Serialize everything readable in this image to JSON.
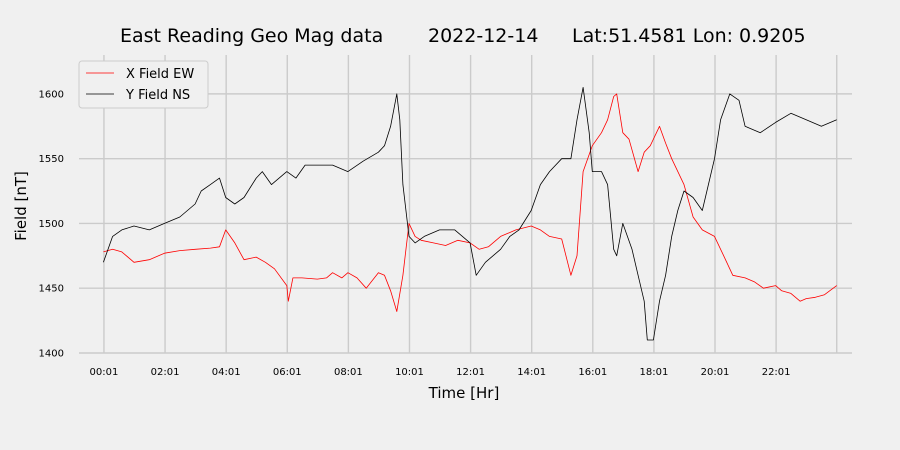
{
  "chart_data": {
    "type": "line",
    "title": {
      "name": "East Reading Geo Mag data",
      "date": "2022-12-14",
      "location": "Lat:51.4581  Lon: 0.9205"
    },
    "xlabel": "Time  [Hr]",
    "ylabel": "Field  [nT]",
    "x_unit": "hours",
    "xlim": [
      -0.8,
      24.5
    ],
    "ylim": [
      1400,
      1630
    ],
    "x_ticks": [
      {
        "x": 0.0167,
        "label": "00:01"
      },
      {
        "x": 2.0167,
        "label": "02:01"
      },
      {
        "x": 4.0167,
        "label": "04:01"
      },
      {
        "x": 6.0167,
        "label": "06:01"
      },
      {
        "x": 8.0167,
        "label": "08:01"
      },
      {
        "x": 10.0167,
        "label": "10:01"
      },
      {
        "x": 12.0167,
        "label": "12:01"
      },
      {
        "x": 14.0167,
        "label": "14:01"
      },
      {
        "x": 16.0167,
        "label": "16:01"
      },
      {
        "x": 18.0167,
        "label": "18:01"
      },
      {
        "x": 20.0167,
        "label": "20:01"
      },
      {
        "x": 22.0167,
        "label": "22:01"
      }
    ],
    "x_grid_extra": [
      24.0
    ],
    "y_ticks": [
      1400,
      1450,
      1500,
      1550,
      1600
    ],
    "grid": true,
    "legend": "top-left",
    "series": [
      {
        "name": "X Field EW",
        "color": "#ff0000",
        "x": [
          0,
          0.3,
          0.6,
          1,
          1.5,
          2,
          2.5,
          3,
          3.5,
          3.8,
          4,
          4.3,
          4.6,
          5,
          5.3,
          5.6,
          6,
          6.05,
          6.2,
          6.5,
          7,
          7.3,
          7.5,
          7.8,
          8,
          8.3,
          8.6,
          9,
          9.2,
          9.4,
          9.6,
          9.8,
          10,
          10.2,
          10.4,
          10.8,
          11.2,
          11.6,
          12,
          12.3,
          12.6,
          13,
          13.5,
          14,
          14.3,
          14.6,
          15,
          15.3,
          15.5,
          15.7,
          16,
          16.3,
          16.5,
          16.7,
          16.8,
          17,
          17.2,
          17.5,
          17.7,
          17.9,
          18.2,
          18.4,
          18.6,
          19,
          19.3,
          19.6,
          20,
          20.3,
          20.6,
          21,
          21.3,
          21.6,
          22,
          22.2,
          22.5,
          22.8,
          23,
          23.3,
          23.6,
          24
        ],
        "y": [
          1478,
          1480,
          1478,
          1470,
          1472,
          1477,
          1479,
          1480,
          1481,
          1482,
          1495,
          1485,
          1472,
          1474,
          1470,
          1465,
          1452,
          1440,
          1458,
          1458,
          1457,
          1458,
          1462,
          1458,
          1462,
          1458,
          1450,
          1462,
          1460,
          1448,
          1432,
          1460,
          1500,
          1490,
          1487,
          1485,
          1483,
          1487,
          1485,
          1480,
          1482,
          1490,
          1495,
          1498,
          1495,
          1490,
          1488,
          1460,
          1475,
          1540,
          1560,
          1570,
          1580,
          1598,
          1600,
          1570,
          1565,
          1540,
          1555,
          1560,
          1575,
          1562,
          1550,
          1530,
          1505,
          1495,
          1490,
          1475,
          1460,
          1458,
          1455,
          1450,
          1452,
          1448,
          1446,
          1440,
          1442,
          1443,
          1445,
          1452
        ]
      },
      {
        "name": "Y Field NS",
        "color": "#000000",
        "x": [
          0,
          0.3,
          0.6,
          1,
          1.5,
          2,
          2.5,
          3,
          3.2,
          3.5,
          3.8,
          4,
          4.3,
          4.6,
          5,
          5.2,
          5.5,
          6,
          6.3,
          6.6,
          7,
          7.5,
          8,
          8.5,
          9,
          9.2,
          9.4,
          9.6,
          9.7,
          9.8,
          10,
          10.2,
          10.5,
          11,
          11.5,
          12,
          12.2,
          12.5,
          13,
          13.3,
          13.6,
          14,
          14.3,
          14.6,
          15,
          15.3,
          15.5,
          15.7,
          15.9,
          16,
          16.3,
          16.5,
          16.7,
          16.8,
          17,
          17.3,
          17.5,
          17.7,
          17.8,
          18,
          18.2,
          18.4,
          18.6,
          18.8,
          19,
          19.3,
          19.6,
          19.8,
          20,
          20.2,
          20.5,
          20.8,
          21,
          21.5,
          22,
          22.5,
          23,
          23.5,
          24
        ],
        "y": [
          1470,
          1490,
          1495,
          1498,
          1495,
          1500,
          1505,
          1515,
          1525,
          1530,
          1535,
          1520,
          1515,
          1520,
          1535,
          1540,
          1530,
          1540,
          1535,
          1545,
          1545,
          1545,
          1540,
          1548,
          1555,
          1560,
          1575,
          1600,
          1580,
          1530,
          1490,
          1485,
          1490,
          1495,
          1495,
          1485,
          1460,
          1470,
          1480,
          1490,
          1495,
          1510,
          1530,
          1540,
          1550,
          1550,
          1580,
          1605,
          1570,
          1540,
          1540,
          1530,
          1480,
          1475,
          1500,
          1480,
          1460,
          1440,
          1410,
          1410,
          1440,
          1460,
          1490,
          1510,
          1525,
          1520,
          1510,
          1530,
          1550,
          1580,
          1600,
          1595,
          1575,
          1570,
          1578,
          1585,
          1580,
          1575,
          1580
        ]
      }
    ]
  }
}
